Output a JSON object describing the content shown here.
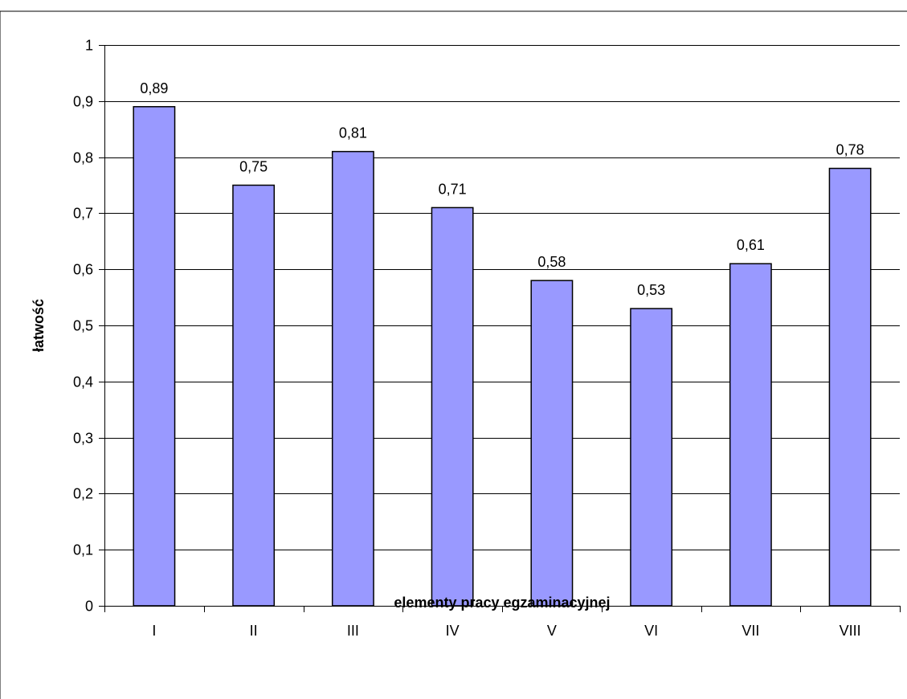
{
  "chart_data": {
    "type": "bar",
    "title": "",
    "xlabel": "elementy pracy egzaminacyjnej",
    "ylabel": "łatwość",
    "categories": [
      "I",
      "II",
      "III",
      "IV",
      "V",
      "VI",
      "VII",
      "VIII"
    ],
    "values": [
      0.89,
      0.75,
      0.81,
      0.71,
      0.58,
      0.53,
      0.61,
      0.78
    ],
    "data_labels": [
      "0,89",
      "0,75",
      "0,81",
      "0,71",
      "0,58",
      "0,53",
      "0,61",
      "0,78"
    ],
    "ylim": [
      0,
      1
    ],
    "y_ticks": [
      0,
      0.1,
      0.2,
      0.3,
      0.4,
      0.5,
      0.6,
      0.7,
      0.8,
      0.9,
      1
    ],
    "y_tick_labels": [
      "0",
      "0,1",
      "0,2",
      "0,3",
      "0,4",
      "0,5",
      "0,6",
      "0,7",
      "0,8",
      "0,9",
      "1"
    ],
    "grid": true,
    "legend": "none",
    "colors": {
      "bar_fill": "#9999ff",
      "bar_stroke": "#000000",
      "grid": "#000000",
      "frame": "#000000"
    }
  }
}
